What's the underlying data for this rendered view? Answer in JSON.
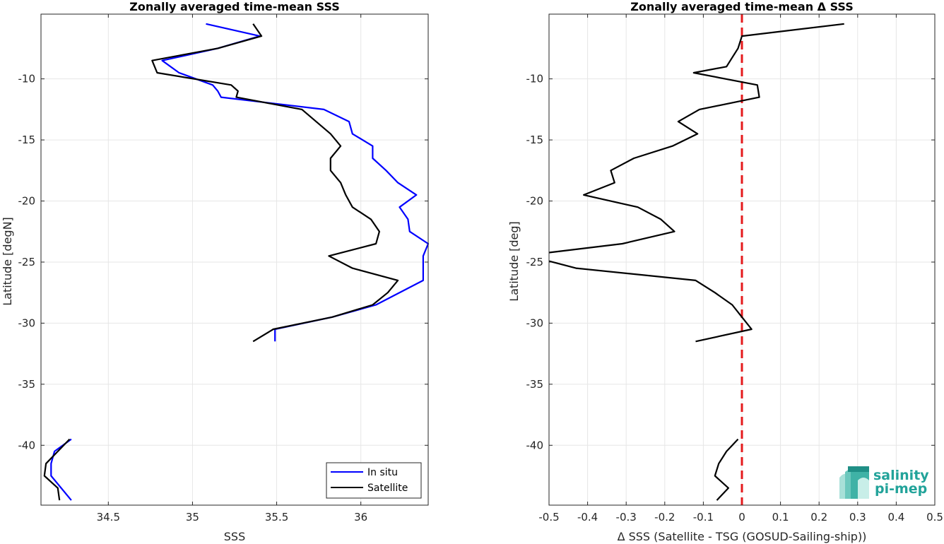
{
  "chart_data": [
    {
      "type": "line",
      "title": "Zonally averaged time-mean SSS",
      "xlabel": "SSS",
      "ylabel": "Latitude [degN]",
      "xlim": [
        34.1,
        36.4
      ],
      "ylim": [
        -44.9,
        -4.7
      ],
      "xticks": [
        34.5,
        35,
        35.5,
        36
      ],
      "xtick_labels": [
        "34.5",
        "35",
        "35.5",
        "36"
      ],
      "yticks": [
        -10,
        -15,
        -20,
        -25,
        -30,
        -35,
        -40
      ],
      "ytick_labels": [
        "-10",
        "-15",
        "-20",
        "-25",
        "-30",
        "-35",
        "-40"
      ],
      "grid": true,
      "legend": "bottom-right",
      "series": [
        {
          "name": "In situ",
          "color": "#0000ff",
          "segments": [
            [
              [
                35.08,
                -5.5
              ],
              [
                35.4,
                -6.5
              ],
              [
                35.15,
                -7.5
              ],
              [
                34.82,
                -8.5
              ],
              [
                34.92,
                -9.5
              ],
              [
                35.12,
                -10.5
              ],
              [
                35.15,
                -11.0
              ],
              [
                35.17,
                -11.5
              ],
              [
                35.78,
                -12.5
              ],
              [
                35.93,
                -13.5
              ],
              [
                35.95,
                -14.5
              ],
              [
                36.07,
                -15.5
              ],
              [
                36.07,
                -16.5
              ],
              [
                36.15,
                -17.5
              ],
              [
                36.22,
                -18.5
              ],
              [
                36.33,
                -19.5
              ],
              [
                36.23,
                -20.5
              ],
              [
                36.28,
                -21.5
              ],
              [
                36.29,
                -22.5
              ],
              [
                36.4,
                -23.5
              ],
              [
                36.37,
                -24.5
              ],
              [
                36.37,
                -25.5
              ],
              [
                36.37,
                -26.5
              ],
              [
                36.09,
                -28.5
              ],
              [
                35.83,
                -29.5
              ],
              [
                35.49,
                -30.5
              ],
              [
                35.49,
                -31.5
              ]
            ],
            [
              [
                34.28,
                -39.5
              ],
              [
                34.18,
                -40.5
              ],
              [
                34.16,
                -41.5
              ],
              [
                34.16,
                -42.5
              ],
              [
                34.28,
                -44.5
              ]
            ]
          ]
        },
        {
          "name": "Satellite",
          "color": "#000000",
          "segments": [
            [
              [
                35.36,
                -5.5
              ],
              [
                35.41,
                -6.5
              ],
              [
                35.15,
                -7.5
              ],
              [
                34.76,
                -8.5
              ],
              [
                34.79,
                -9.5
              ],
              [
                35.23,
                -10.5
              ],
              [
                35.27,
                -11.0
              ],
              [
                35.26,
                -11.5
              ],
              [
                35.65,
                -12.5
              ],
              [
                35.82,
                -14.5
              ],
              [
                35.88,
                -15.5
              ],
              [
                35.82,
                -16.5
              ],
              [
                35.82,
                -17.5
              ],
              [
                35.88,
                -18.5
              ],
              [
                35.91,
                -19.5
              ],
              [
                35.95,
                -20.5
              ],
              [
                36.06,
                -21.5
              ],
              [
                36.11,
                -22.5
              ],
              [
                36.09,
                -23.5
              ],
              [
                35.81,
                -24.5
              ],
              [
                35.95,
                -25.5
              ],
              [
                36.22,
                -26.5
              ],
              [
                36.16,
                -27.5
              ],
              [
                36.07,
                -28.5
              ],
              [
                35.83,
                -29.5
              ],
              [
                35.48,
                -30.5
              ],
              [
                35.36,
                -31.5
              ]
            ],
            [
              [
                34.27,
                -39.5
              ],
              [
                34.13,
                -41.5
              ],
              [
                34.12,
                -42.5
              ],
              [
                34.2,
                -43.5
              ],
              [
                34.21,
                -44.5
              ]
            ]
          ]
        }
      ]
    },
    {
      "type": "line",
      "title": "Zonally averaged time-mean Δ SSS",
      "xlabel": "Δ SSS (Satellite - TSG (GOSUD-Sailing-ship))",
      "ylabel": "Latitude [deg]",
      "xlim": [
        -0.5,
        0.5
      ],
      "ylim": [
        -44.9,
        -4.7
      ],
      "xticks": [
        -0.5,
        -0.4,
        -0.3,
        -0.2,
        -0.1,
        0,
        0.1,
        0.2,
        0.3,
        0.4,
        0.5
      ],
      "xtick_labels": [
        "-0.5",
        "-0.4",
        "-0.3",
        "-0.2",
        "-0.1",
        "0",
        "0.1",
        "0.2",
        "0.3",
        "0.4",
        "0.5"
      ],
      "yticks": [
        -10,
        -15,
        -20,
        -25,
        -30,
        -35,
        -40
      ],
      "ytick_labels": [
        "-10",
        "-15",
        "-20",
        "-25",
        "-30",
        "-35",
        "-40"
      ],
      "grid": true,
      "reference_line": {
        "x": 0,
        "color": "#e41a1c",
        "style": "dashed"
      },
      "series": [
        {
          "color": "#000000",
          "segments": [
            [
              [
                0.265,
                -5.5
              ],
              [
                0.0,
                -6.5
              ],
              [
                -0.01,
                -7.5
              ],
              [
                -0.03,
                -8.5
              ],
              [
                -0.04,
                -9.0
              ],
              [
                -0.125,
                -9.5
              ],
              [
                0.04,
                -10.5
              ],
              [
                0.045,
                -11.5
              ],
              [
                -0.11,
                -12.5
              ],
              [
                -0.165,
                -13.5
              ],
              [
                -0.115,
                -14.5
              ],
              [
                -0.18,
                -15.5
              ],
              [
                -0.28,
                -16.5
              ],
              [
                -0.34,
                -17.5
              ],
              [
                -0.33,
                -18.5
              ],
              [
                -0.41,
                -19.5
              ],
              [
                -0.27,
                -20.5
              ],
              [
                -0.21,
                -21.5
              ],
              [
                -0.175,
                -22.5
              ],
              [
                -0.31,
                -23.5
              ],
              [
                -0.5,
                -24.22
              ]
            ],
            [
              [
                -0.5,
                -24.92
              ],
              [
                -0.43,
                -25.5
              ],
              [
                -0.12,
                -26.5
              ],
              [
                -0.07,
                -27.5
              ],
              [
                -0.025,
                -28.5
              ],
              [
                0.0,
                -29.5
              ],
              [
                0.025,
                -30.5
              ],
              [
                -0.12,
                -31.5
              ]
            ],
            [
              [
                -0.01,
                -39.5
              ],
              [
                -0.04,
                -40.5
              ],
              [
                -0.06,
                -41.5
              ],
              [
                -0.07,
                -42.5
              ],
              [
                -0.035,
                -43.5
              ],
              [
                -0.065,
                -44.5
              ]
            ]
          ]
        }
      ]
    }
  ],
  "logo": {
    "line1": "salinity",
    "line2": "pi-mep",
    "color": "#22a39a"
  }
}
